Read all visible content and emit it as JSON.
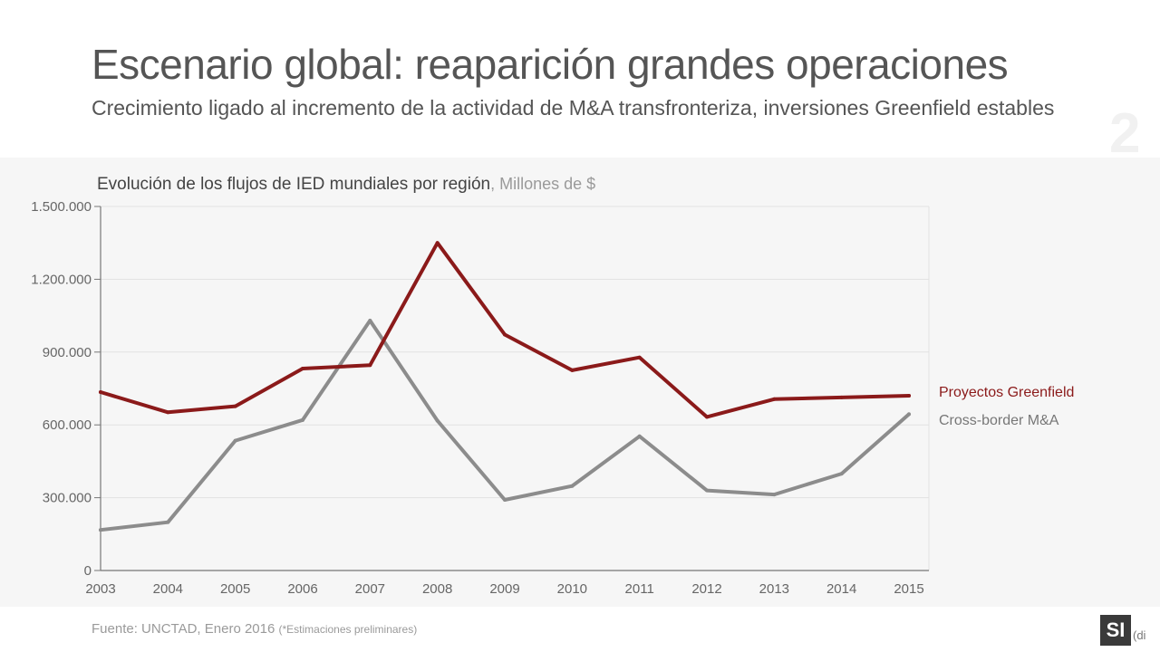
{
  "header": {
    "title": "Escenario global: reaparición grandes operaciones",
    "subtitle": "Crecimiento ligado al incremento de la actividad de M&A transfronteriza, inversiones Greenfield estables",
    "slide_number": "2"
  },
  "footer": {
    "source": "Fuente: UNCTAD, Enero 2016",
    "note": "(*Estimaciones preliminares)",
    "logo": "SI",
    "logo_suffix": "(di"
  },
  "chart_data": {
    "type": "line",
    "title": "Evolución de los flujos de IED mundiales por región",
    "unit": ", Millones de $",
    "x": [
      "2003",
      "2004",
      "2005",
      "2006",
      "2007",
      "2008",
      "2009",
      "2010",
      "2011",
      "2012",
      "2013",
      "2014",
      "2015"
    ],
    "ylim": [
      0,
      1500000
    ],
    "yticks": [
      0,
      300000,
      600000,
      900000,
      1200000,
      1500000
    ],
    "ytick_labels": [
      "0",
      "300.000",
      "600.000",
      "900.000",
      "1.200.000",
      "1.500.000"
    ],
    "grid": true,
    "legend_position": "right",
    "series": [
      {
        "name": "Proyectos Greenfield",
        "color": "#8b1a1a",
        "values": [
          735000,
          652000,
          677000,
          832000,
          846000,
          1350000,
          972000,
          825000,
          878000,
          633000,
          706000,
          713000,
          720000
        ]
      },
      {
        "name": "Cross-border M&A",
        "color": "#8c8c8c",
        "values": [
          167000,
          199000,
          535000,
          620000,
          1030000,
          617000,
          291000,
          348000,
          553000,
          330000,
          313000,
          399000,
          644000
        ]
      }
    ]
  }
}
